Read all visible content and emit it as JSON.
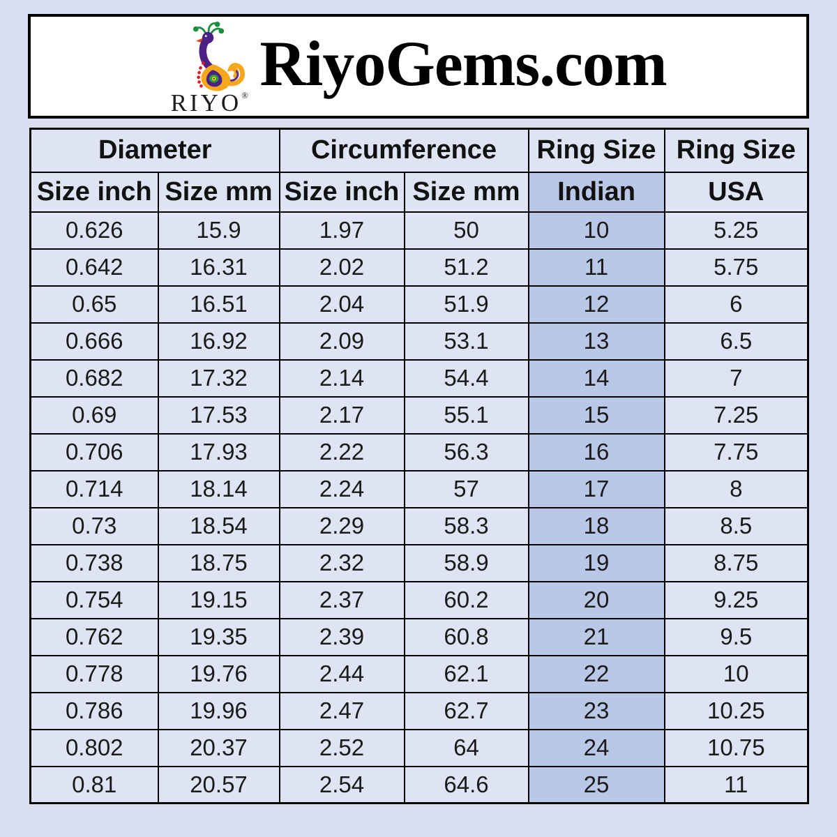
{
  "header": {
    "site_title": "RiyoGems.com",
    "logo": {
      "text": "RIYO",
      "registered": "®"
    }
  },
  "table": {
    "group_headers": [
      {
        "label": "Diameter",
        "colspan": 2
      },
      {
        "label": "Circumference",
        "colspan": 2
      },
      {
        "label": "Ring Size",
        "colspan": 1
      },
      {
        "label": "Ring Size",
        "colspan": 1
      }
    ],
    "sub_headers": [
      "Size inch",
      "Size mm",
      "Size inch",
      "Size mm",
      "Indian",
      "USA"
    ],
    "highlight_column_index": 4
  },
  "chart_data": {
    "type": "table",
    "title": "RiyoGems.com ring size conversion chart",
    "columns": [
      "Diameter Size inch",
      "Diameter Size mm",
      "Circumference Size inch",
      "Circumference Size mm",
      "Ring Size Indian",
      "Ring Size USA"
    ],
    "rows": [
      [
        "0.626",
        "15.9",
        "1.97",
        "50",
        "10",
        "5.25"
      ],
      [
        "0.642",
        "16.31",
        "2.02",
        "51.2",
        "11",
        "5.75"
      ],
      [
        "0.65",
        "16.51",
        "2.04",
        "51.9",
        "12",
        "6"
      ],
      [
        "0.666",
        "16.92",
        "2.09",
        "53.1",
        "13",
        "6.5"
      ],
      [
        "0.682",
        "17.32",
        "2.14",
        "54.4",
        "14",
        "7"
      ],
      [
        "0.69",
        "17.53",
        "2.17",
        "55.1",
        "15",
        "7.25"
      ],
      [
        "0.706",
        "17.93",
        "2.22",
        "56.3",
        "16",
        "7.75"
      ],
      [
        "0.714",
        "18.14",
        "2.24",
        "57",
        "17",
        "8"
      ],
      [
        "0.73",
        "18.54",
        "2.29",
        "58.3",
        "18",
        "8.5"
      ],
      [
        "0.738",
        "18.75",
        "2.32",
        "58.9",
        "19",
        "8.75"
      ],
      [
        "0.754",
        "19.15",
        "2.37",
        "60.2",
        "20",
        "9.25"
      ],
      [
        "0.762",
        "19.35",
        "2.39",
        "60.8",
        "21",
        "9.5"
      ],
      [
        "0.778",
        "19.76",
        "2.44",
        "62.1",
        "22",
        "10"
      ],
      [
        "0.786",
        "19.96",
        "2.47",
        "62.7",
        "23",
        "10.25"
      ],
      [
        "0.802",
        "20.37",
        "2.52",
        "64",
        "24",
        "10.75"
      ],
      [
        "0.81",
        "20.57",
        "2.54",
        "64.6",
        "25",
        "11"
      ]
    ]
  },
  "colors": {
    "page_bg": "#d9def0",
    "cell_bg": "#dee4f3",
    "highlight_bg": "#b9c8e7",
    "border": "#000000",
    "header_box_bg": "#ffffff",
    "logo_orange": "#f6a71b",
    "logo_purple": "#4c2186",
    "logo_green": "#1e8f3e",
    "logo_red": "#e0181c"
  }
}
